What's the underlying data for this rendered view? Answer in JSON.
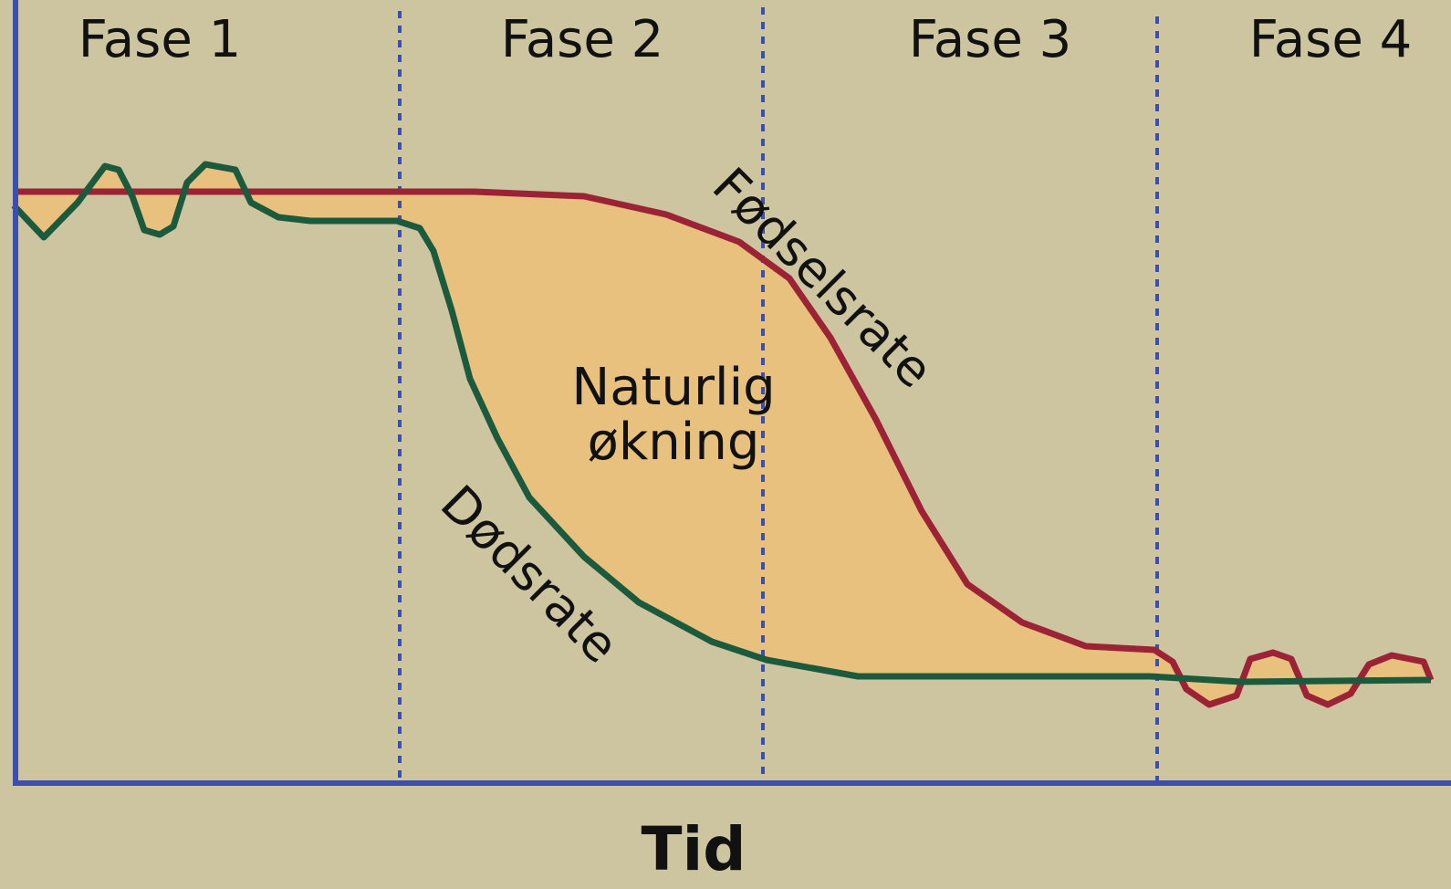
{
  "phases": [
    "Fase 1",
    "Fase 2",
    "Fase 3",
    "Fase 4"
  ],
  "birth_label": "Fødselsrate",
  "death_label": "Dødsrate",
  "gap_label": [
    "Naturlig",
    "økning"
  ],
  "x_label": "Tid"
}
